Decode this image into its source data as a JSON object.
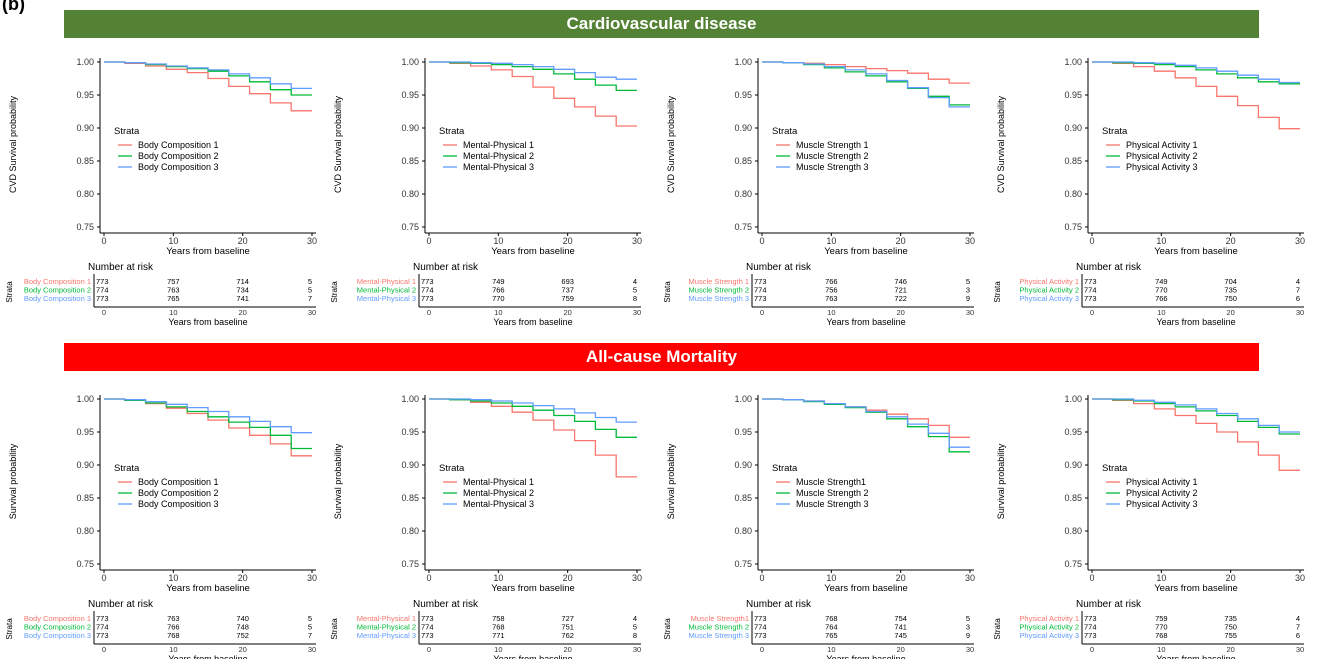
{
  "panel_label": "(b)",
  "sections": [
    {
      "title": "Cardiovascular disease",
      "color": "#548235"
    },
    {
      "title": "All-cause Mortality",
      "color": "#ff0000"
    }
  ],
  "colors": {
    "series1": "#f8766d",
    "series2": "#00ba38",
    "series3": "#619cff"
  },
  "common": {
    "xlabel": "Years from baseline",
    "legend_title": "Strata",
    "risk_title": "Number at risk",
    "risk_ylabel": "Strata",
    "xticks": [
      0,
      10,
      20,
      30
    ],
    "yticks": [
      "1.00",
      "0.95",
      "0.90",
      "0.85",
      "0.80",
      "0.75"
    ]
  },
  "chart_data": [
    {
      "type": "line",
      "section": "Cardiovascular disease",
      "ylabel": "CVD Survival probability",
      "xlim": [
        0,
        30
      ],
      "ylim": [
        0.75,
        1.0
      ],
      "series": [
        {
          "name": "Body Composition 1",
          "x": [
            0,
            3,
            6,
            9,
            12,
            15,
            18,
            21,
            24,
            27,
            30
          ],
          "values": [
            1.0,
            0.998,
            0.994,
            0.989,
            0.984,
            0.975,
            0.963,
            0.952,
            0.938,
            0.926,
            0.926
          ]
        },
        {
          "name": "Body Composition 2",
          "x": [
            0,
            3,
            6,
            9,
            12,
            15,
            18,
            21,
            24,
            27,
            30
          ],
          "values": [
            1.0,
            0.999,
            0.996,
            0.993,
            0.99,
            0.986,
            0.979,
            0.97,
            0.958,
            0.95,
            0.95
          ]
        },
        {
          "name": "Body Composition 3",
          "x": [
            0,
            3,
            6,
            9,
            12,
            15,
            18,
            21,
            24,
            27,
            30
          ],
          "values": [
            1.0,
            0.999,
            0.997,
            0.994,
            0.991,
            0.988,
            0.982,
            0.976,
            0.967,
            0.96,
            0.96
          ]
        }
      ],
      "risk_table": [
        {
          "label": "Body Composition 1",
          "values": [
            773,
            757,
            714,
            5
          ]
        },
        {
          "label": "Body Composition 2",
          "values": [
            774,
            763,
            734,
            5
          ]
        },
        {
          "label": "Body Composition 3",
          "values": [
            773,
            765,
            741,
            7
          ]
        }
      ]
    },
    {
      "type": "line",
      "section": "Cardiovascular disease",
      "ylabel": "CVD Survival probability",
      "xlim": [
        0,
        30
      ],
      "ylim": [
        0.75,
        1.0
      ],
      "series": [
        {
          "name": "Mental-Physical 1",
          "x": [
            0,
            3,
            6,
            9,
            12,
            15,
            18,
            21,
            24,
            27,
            30
          ],
          "values": [
            1.0,
            0.998,
            0.994,
            0.988,
            0.978,
            0.962,
            0.945,
            0.932,
            0.918,
            0.903,
            0.903
          ]
        },
        {
          "name": "Mental-Physical 2",
          "x": [
            0,
            3,
            6,
            9,
            12,
            15,
            18,
            21,
            24,
            27,
            30
          ],
          "values": [
            1.0,
            0.999,
            0.998,
            0.996,
            0.993,
            0.989,
            0.982,
            0.974,
            0.965,
            0.957,
            0.957
          ]
        },
        {
          "name": "Mental-Physical 3",
          "x": [
            0,
            3,
            6,
            9,
            12,
            15,
            18,
            21,
            24,
            27,
            30
          ],
          "values": [
            1.0,
            1.0,
            0.999,
            0.998,
            0.996,
            0.993,
            0.989,
            0.984,
            0.977,
            0.974,
            0.974
          ]
        }
      ],
      "risk_table": [
        {
          "label": "Mental-Physical 1",
          "values": [
            773,
            749,
            693,
            4
          ]
        },
        {
          "label": "Mental-Physical 2",
          "values": [
            774,
            766,
            737,
            5
          ]
        },
        {
          "label": "Mental-Physical 3",
          "values": [
            773,
            770,
            759,
            8
          ]
        }
      ]
    },
    {
      "type": "line",
      "section": "Cardiovascular disease",
      "ylabel": "CVD Survival probability",
      "xlim": [
        0,
        30
      ],
      "ylim": [
        0.75,
        1.0
      ],
      "series": [
        {
          "name": "Muscle Strength 1",
          "x": [
            0,
            3,
            6,
            9,
            12,
            15,
            18,
            21,
            24,
            27,
            30
          ],
          "values": [
            1.0,
            0.999,
            0.998,
            0.996,
            0.993,
            0.99,
            0.987,
            0.983,
            0.974,
            0.968,
            0.968
          ]
        },
        {
          "name": "Muscle Strength 2",
          "x": [
            0,
            3,
            6,
            9,
            12,
            15,
            18,
            21,
            24,
            27,
            30
          ],
          "values": [
            1.0,
            0.999,
            0.996,
            0.991,
            0.985,
            0.979,
            0.97,
            0.96,
            0.948,
            0.935,
            0.935
          ]
        },
        {
          "name": "Muscle Strength 3",
          "x": [
            0,
            3,
            6,
            9,
            12,
            15,
            18,
            21,
            24,
            27,
            30
          ],
          "values": [
            1.0,
            0.999,
            0.997,
            0.993,
            0.988,
            0.982,
            0.972,
            0.961,
            0.946,
            0.932,
            0.932
          ]
        }
      ],
      "risk_table": [
        {
          "label": "Muscle Strength 1",
          "values": [
            773,
            766,
            746,
            5
          ]
        },
        {
          "label": "Muscle Strength 2",
          "values": [
            774,
            756,
            721,
            3
          ]
        },
        {
          "label": "Muscle Strength 3",
          "values": [
            773,
            763,
            722,
            9
          ]
        }
      ]
    },
    {
      "type": "line",
      "section": "Cardiovascular disease",
      "ylabel": "CVD Survival probability",
      "xlim": [
        0,
        30
      ],
      "ylim": [
        0.75,
        1.0
      ],
      "series": [
        {
          "name": "Physical Activity 1",
          "x": [
            0,
            3,
            6,
            9,
            12,
            15,
            18,
            21,
            24,
            27,
            30
          ],
          "values": [
            1.0,
            0.998,
            0.993,
            0.986,
            0.976,
            0.963,
            0.948,
            0.934,
            0.916,
            0.899,
            0.899
          ]
        },
        {
          "name": "Physical Activity 2",
          "x": [
            0,
            3,
            6,
            9,
            12,
            15,
            18,
            21,
            24,
            27,
            30
          ],
          "values": [
            1.0,
            0.999,
            0.998,
            0.996,
            0.993,
            0.988,
            0.982,
            0.976,
            0.97,
            0.967,
            0.967
          ]
        },
        {
          "name": "Physical Activity 3",
          "x": [
            0,
            3,
            6,
            9,
            12,
            15,
            18,
            21,
            24,
            27,
            30
          ],
          "values": [
            1.0,
            1.0,
            0.999,
            0.998,
            0.995,
            0.991,
            0.986,
            0.98,
            0.974,
            0.969,
            0.969
          ]
        }
      ],
      "risk_table": [
        {
          "label": "Physical Activity 1",
          "values": [
            773,
            749,
            704,
            4
          ]
        },
        {
          "label": "Physical Activity 2",
          "values": [
            774,
            770,
            735,
            7
          ]
        },
        {
          "label": "Physical Activity 3",
          "values": [
            773,
            766,
            750,
            6
          ]
        }
      ]
    },
    {
      "type": "line",
      "section": "All-cause Mortality",
      "ylabel": "Survival probability",
      "xlim": [
        0,
        30
      ],
      "ylim": [
        0.75,
        1.0
      ],
      "series": [
        {
          "name": "Body Composition 1",
          "x": [
            0,
            3,
            6,
            9,
            12,
            15,
            18,
            21,
            24,
            27,
            30
          ],
          "values": [
            1.0,
            0.998,
            0.993,
            0.986,
            0.978,
            0.968,
            0.956,
            0.945,
            0.932,
            0.914,
            0.914
          ]
        },
        {
          "name": "Body Composition 2",
          "x": [
            0,
            3,
            6,
            9,
            12,
            15,
            18,
            21,
            24,
            27,
            30
          ],
          "values": [
            1.0,
            0.998,
            0.994,
            0.988,
            0.981,
            0.973,
            0.965,
            0.957,
            0.945,
            0.925,
            0.925
          ]
        },
        {
          "name": "Body Composition 3",
          "x": [
            0,
            3,
            6,
            9,
            12,
            15,
            18,
            21,
            24,
            27,
            30
          ],
          "values": [
            1.0,
            0.999,
            0.996,
            0.992,
            0.987,
            0.981,
            0.973,
            0.966,
            0.958,
            0.949,
            0.949
          ]
        }
      ],
      "risk_table": [
        {
          "label": "Body Composition 1",
          "values": [
            773,
            763,
            740,
            5
          ]
        },
        {
          "label": "Body Composition 2",
          "values": [
            774,
            766,
            748,
            5
          ]
        },
        {
          "label": "Body Composition 3",
          "values": [
            773,
            768,
            752,
            7
          ]
        }
      ]
    },
    {
      "type": "line",
      "section": "All-cause Mortality",
      "ylabel": "Survival probability",
      "xlim": [
        0,
        30
      ],
      "ylim": [
        0.75,
        1.0
      ],
      "series": [
        {
          "name": "Mental-Physical 1",
          "x": [
            0,
            3,
            6,
            9,
            12,
            15,
            18,
            21,
            24,
            27,
            30
          ],
          "values": [
            1.0,
            0.999,
            0.995,
            0.989,
            0.98,
            0.968,
            0.953,
            0.937,
            0.915,
            0.882,
            0.882
          ]
        },
        {
          "name": "Mental-Physical 2",
          "x": [
            0,
            3,
            6,
            9,
            12,
            15,
            18,
            21,
            24,
            27,
            30
          ],
          "values": [
            1.0,
            0.999,
            0.997,
            0.994,
            0.989,
            0.983,
            0.975,
            0.966,
            0.954,
            0.942,
            0.942
          ]
        },
        {
          "name": "Mental-Physical 3",
          "x": [
            0,
            3,
            6,
            9,
            12,
            15,
            18,
            21,
            24,
            27,
            30
          ],
          "values": [
            1.0,
            1.0,
            0.999,
            0.997,
            0.994,
            0.99,
            0.985,
            0.979,
            0.972,
            0.965,
            0.965
          ]
        }
      ],
      "risk_table": [
        {
          "label": "Mental-Physical 1",
          "values": [
            773,
            758,
            727,
            4
          ]
        },
        {
          "label": "Mental-Physical 2",
          "values": [
            774,
            768,
            751,
            5
          ]
        },
        {
          "label": "Mental-Physical 3",
          "values": [
            773,
            771,
            762,
            8
          ]
        }
      ]
    },
    {
      "type": "line",
      "section": "All-cause Mortality",
      "ylabel": "Survival probability",
      "xlim": [
        0,
        30
      ],
      "ylim": [
        0.75,
        1.0
      ],
      "series": [
        {
          "name": "Muscle Strength1",
          "x": [
            0,
            3,
            6,
            9,
            12,
            15,
            18,
            21,
            24,
            27,
            30
          ],
          "values": [
            1.0,
            0.999,
            0.997,
            0.993,
            0.988,
            0.983,
            0.977,
            0.97,
            0.96,
            0.942,
            0.942
          ]
        },
        {
          "name": "Muscle Strength 2",
          "x": [
            0,
            3,
            6,
            9,
            12,
            15,
            18,
            21,
            24,
            27,
            30
          ],
          "values": [
            1.0,
            0.999,
            0.996,
            0.992,
            0.987,
            0.98,
            0.97,
            0.958,
            0.943,
            0.92,
            0.92
          ]
        },
        {
          "name": "Muscle Strength 3",
          "x": [
            0,
            3,
            6,
            9,
            12,
            15,
            18,
            21,
            24,
            27,
            30
          ],
          "values": [
            1.0,
            0.999,
            0.997,
            0.993,
            0.988,
            0.981,
            0.973,
            0.962,
            0.948,
            0.927,
            0.927
          ]
        }
      ],
      "risk_table": [
        {
          "label": "Muscle Strength1",
          "values": [
            773,
            768,
            754,
            5
          ]
        },
        {
          "label": "Muscle Strength 2",
          "values": [
            774,
            764,
            741,
            3
          ]
        },
        {
          "label": "Muscle Strength 3",
          "values": [
            773,
            765,
            745,
            9
          ]
        }
      ]
    },
    {
      "type": "line",
      "section": "All-cause Mortality",
      "ylabel": "Survival probability",
      "xlim": [
        0,
        30
      ],
      "ylim": [
        0.75,
        1.0
      ],
      "series": [
        {
          "name": "Physical Activity 1",
          "x": [
            0,
            3,
            6,
            9,
            12,
            15,
            18,
            21,
            24,
            27,
            30
          ],
          "values": [
            1.0,
            0.998,
            0.993,
            0.985,
            0.975,
            0.963,
            0.95,
            0.935,
            0.915,
            0.892,
            0.892
          ]
        },
        {
          "name": "Physical Activity 2",
          "x": [
            0,
            3,
            6,
            9,
            12,
            15,
            18,
            21,
            24,
            27,
            30
          ],
          "values": [
            1.0,
            0.999,
            0.997,
            0.993,
            0.988,
            0.982,
            0.975,
            0.966,
            0.957,
            0.947,
            0.947
          ]
        },
        {
          "name": "Physical Activity 3",
          "x": [
            0,
            3,
            6,
            9,
            12,
            15,
            18,
            21,
            24,
            27,
            30
          ],
          "values": [
            1.0,
            1.0,
            0.998,
            0.995,
            0.991,
            0.985,
            0.978,
            0.97,
            0.96,
            0.95,
            0.95
          ]
        }
      ],
      "risk_table": [
        {
          "label": "Physical Activity 1",
          "values": [
            773,
            759,
            735,
            4
          ]
        },
        {
          "label": "Physical Activity 2",
          "values": [
            774,
            770,
            750,
            7
          ]
        },
        {
          "label": "Physical Activity 3",
          "values": [
            773,
            768,
            755,
            6
          ]
        }
      ]
    }
  ]
}
